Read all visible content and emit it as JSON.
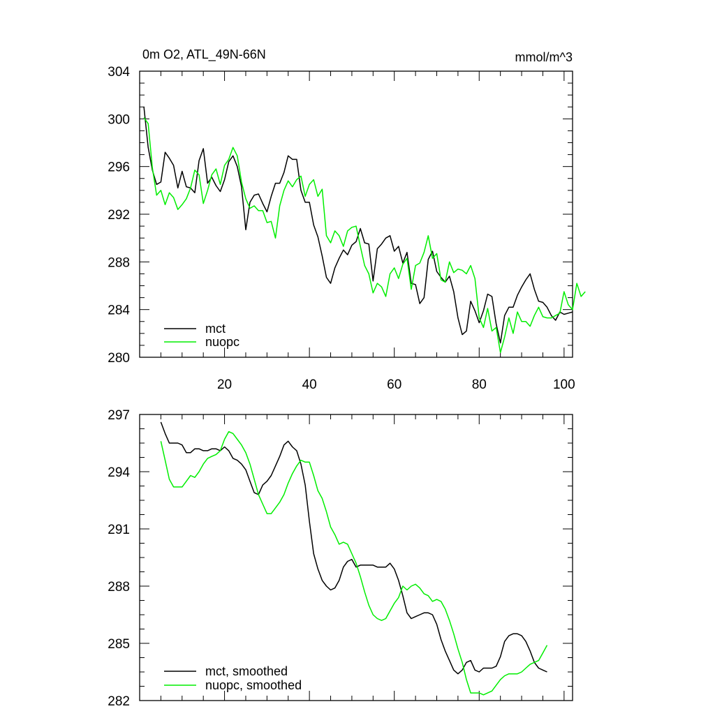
{
  "colors": {
    "mct": "#000000",
    "nuopc": "#00ee00",
    "frame": "#000000"
  },
  "chart_data": [
    {
      "type": "line",
      "title_left": "0m O2, ATL_49N-66N",
      "title_right": "mmol/m^3",
      "xlim": [
        0,
        102
      ],
      "ylim": [
        280,
        304
      ],
      "xticks": [
        20,
        40,
        60,
        80,
        100
      ],
      "yticks": [
        280,
        284,
        288,
        292,
        296,
        300,
        304
      ],
      "x_tick_labels_shown": true,
      "legend_position": "bottom-left",
      "series": [
        {
          "name": "mct",
          "color": "#000000",
          "values": [
            301.0,
            297.6,
            295.7,
            294.5,
            294.7,
            297.2,
            296.7,
            296.1,
            294.2,
            295.6,
            294.3,
            294.2,
            293.8,
            296.5,
            297.5,
            294.6,
            295.1,
            294.4,
            293.9,
            294.9,
            296.4,
            296.9,
            296.0,
            294.3,
            290.7,
            293.0,
            293.6,
            293.7,
            292.9,
            292.2,
            293.5,
            294.6,
            294.6,
            295.5,
            296.9,
            296.6,
            296.6,
            294.0,
            293.0,
            293.0,
            291.1,
            290.1,
            288.5,
            286.7,
            286.2,
            287.5,
            288.3,
            289.0,
            288.6,
            289.4,
            289.7,
            290.8,
            289.6,
            289.5,
            286.4,
            289.1,
            289.5,
            290.0,
            290.2,
            288.9,
            289.3,
            287.9,
            288.8,
            286.2,
            286.1,
            284.5,
            285.0,
            288.2,
            288.9,
            287.2,
            286.7,
            286.3,
            286.8,
            285.5,
            283.3,
            281.9,
            282.2,
            284.7,
            283.9,
            282.9,
            283.9,
            285.3,
            285.1,
            282.8,
            281.2,
            283.5,
            284.2,
            284.2,
            285.2,
            285.9,
            286.5,
            287.0,
            285.7,
            284.7,
            284.6,
            284.2,
            283.5,
            283.1,
            283.8,
            283.6,
            283.7,
            283.8
          ]
        },
        {
          "name": "nuopc",
          "color": "#00ee00",
          "values": [
            300.1,
            299.6,
            295.9,
            293.6,
            294.0,
            292.8,
            293.8,
            293.4,
            292.4,
            292.8,
            293.3,
            294.2,
            295.7,
            295.3,
            292.9,
            294.0,
            295.3,
            295.8,
            294.5,
            296.1,
            296.6,
            297.6,
            296.9,
            294.7,
            293.3,
            292.5,
            292.7,
            292.3,
            292.3,
            291.3,
            291.4,
            290.0,
            292.7,
            294.0,
            294.8,
            294.3,
            294.9,
            295.2,
            293.5,
            294.5,
            294.9,
            293.5,
            294.1,
            290.2,
            289.6,
            290.6,
            290.2,
            289.3,
            290.6,
            290.9,
            291.0,
            289.3,
            287.7,
            287.0,
            285.4,
            286.2,
            285.9,
            285.1,
            287.0,
            287.5,
            286.6,
            287.8,
            288.3,
            285.7,
            287.7,
            287.9,
            288.8,
            290.2,
            288.3,
            288.7,
            286.5,
            286.3,
            288.0,
            287.1,
            287.4,
            287.3,
            287.0,
            287.7,
            286.6,
            283.3,
            282.5,
            284.1,
            282.2,
            282.5,
            280.4,
            281.7,
            283.3,
            282.0,
            283.8,
            283.0,
            283.0,
            282.6,
            283.5,
            284.2,
            283.4,
            283.3,
            283.3,
            283.5,
            283.7,
            285.5,
            284.4,
            284.0,
            286.2,
            285.1,
            285.5
          ]
        }
      ]
    },
    {
      "type": "line",
      "xlim": [
        0,
        102
      ],
      "ylim": [
        282,
        297
      ],
      "xticks": [
        20,
        40,
        60,
        80,
        100
      ],
      "yticks": [
        282,
        285,
        288,
        291,
        294,
        297
      ],
      "x_tick_labels_shown": false,
      "legend_position": "bottom-left",
      "series": [
        {
          "name": "mct, smoothed",
          "color": "#000000",
          "values": [
            296.6,
            296.0,
            295.5,
            295.5,
            295.5,
            295.4,
            295.0,
            295.0,
            295.2,
            295.2,
            295.1,
            295.1,
            295.2,
            295.2,
            295.1,
            295.3,
            295.1,
            294.7,
            294.6,
            294.4,
            294.1,
            293.5,
            292.9,
            292.8,
            293.3,
            293.5,
            293.8,
            294.3,
            294.8,
            295.4,
            295.6,
            295.3,
            295.1,
            294.4,
            293.3,
            291.4,
            289.7,
            288.9,
            288.3,
            288.0,
            287.8,
            287.9,
            288.3,
            289.0,
            289.3,
            289.4,
            289.0,
            289.1,
            289.1,
            289.1,
            289.1,
            289.0,
            289.0,
            289.0,
            289.2,
            288.9,
            288.3,
            287.5,
            286.6,
            286.3,
            286.4,
            286.5,
            286.6,
            286.6,
            286.5,
            286.0,
            285.2,
            284.6,
            284.1,
            283.6,
            283.4,
            283.6,
            284.0,
            284.1,
            283.6,
            283.5,
            283.7,
            283.7,
            283.7,
            283.8,
            284.3,
            285.1,
            285.4,
            285.5,
            285.5,
            285.4,
            285.1,
            284.6,
            284.0,
            283.7,
            283.6,
            283.5
          ]
        },
        {
          "name": "nuopc, smoothed",
          "color": "#00ee00",
          "values": [
            295.6,
            294.6,
            293.6,
            293.2,
            293.2,
            293.2,
            293.5,
            293.8,
            293.7,
            294.0,
            294.4,
            294.7,
            294.8,
            294.9,
            295.1,
            295.7,
            296.1,
            296.0,
            295.7,
            295.4,
            295.0,
            294.4,
            293.6,
            292.8,
            292.3,
            291.8,
            291.8,
            292.1,
            292.4,
            292.8,
            293.4,
            293.9,
            294.3,
            294.6,
            294.5,
            294.5,
            293.8,
            293.0,
            292.6,
            291.9,
            291.1,
            290.7,
            290.2,
            290.3,
            290.2,
            289.7,
            289.2,
            288.5,
            287.7,
            287.0,
            286.5,
            286.3,
            286.2,
            286.3,
            286.7,
            287.1,
            287.4,
            288.0,
            287.8,
            288.0,
            288.1,
            287.9,
            287.6,
            287.5,
            287.2,
            287.3,
            287.2,
            286.8,
            286.2,
            285.5,
            284.7,
            284.0,
            283.1,
            282.4,
            282.4,
            282.4,
            282.3,
            282.4,
            282.5,
            282.8,
            283.1,
            283.3,
            283.4,
            283.4,
            283.4,
            283.5,
            283.7,
            283.9,
            284.0,
            284.1,
            284.5,
            284.9
          ]
        }
      ]
    }
  ]
}
